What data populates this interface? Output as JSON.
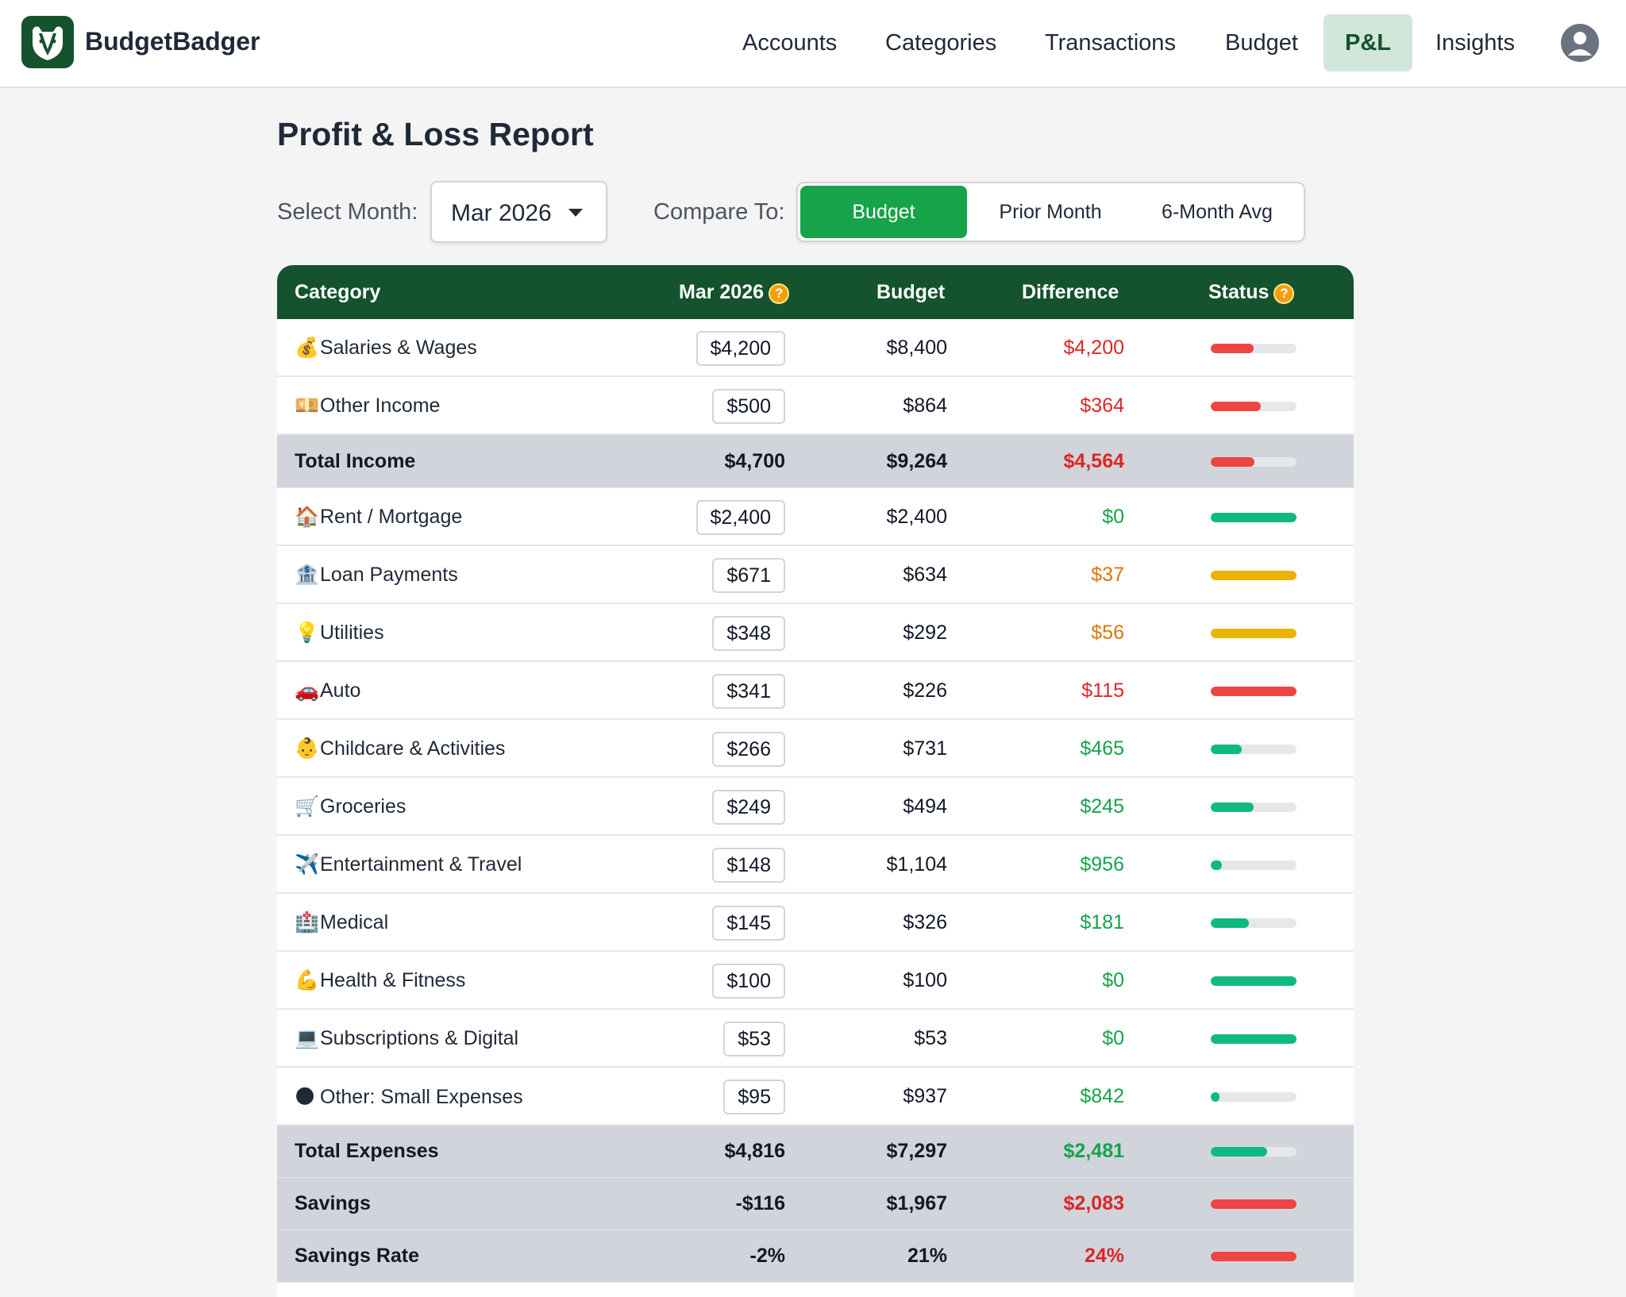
{
  "app": {
    "name": "BudgetBadger"
  },
  "nav": {
    "items": [
      {
        "label": "Accounts"
      },
      {
        "label": "Categories"
      },
      {
        "label": "Transactions"
      },
      {
        "label": "Budget"
      },
      {
        "label": "P&L",
        "active": true
      },
      {
        "label": "Insights"
      }
    ]
  },
  "page": {
    "title": "Profit & Loss Report"
  },
  "controls": {
    "month_label": "Select Month:",
    "month_value": "Mar 2026",
    "compare_label": "Compare To:",
    "compare_options": [
      "Budget",
      "Prior Month",
      "6-Month Avg"
    ],
    "compare_selected": "Budget"
  },
  "table": {
    "headers": {
      "category": "Category",
      "actual": "Mar 2026",
      "budget": "Budget",
      "difference": "Difference",
      "status": "Status"
    },
    "help_glyph": "?",
    "rows": [
      {
        "icon": "💰",
        "category": "Salaries & Wages",
        "actual": "$4,200",
        "budget": "$8,400",
        "difference": "$4,200",
        "status": "red",
        "progress": 0.5
      },
      {
        "icon": "💴",
        "category": "Other Income",
        "actual": "$500",
        "budget": "$864",
        "difference": "$364",
        "status": "red",
        "progress": 0.58
      },
      {
        "total": true,
        "category": "Total Income",
        "actual": "$4,700",
        "budget": "$9,264",
        "difference": "$4,564",
        "status": "red",
        "progress": 0.51
      },
      {
        "icon": "🏠",
        "category": "Rent / Mortgage",
        "actual": "$2,400",
        "budget": "$2,400",
        "difference": "$0",
        "status": "green",
        "progress": 1.0
      },
      {
        "icon": "🏦",
        "category": "Loan Payments",
        "actual": "$671",
        "budget": "$634",
        "difference": "$37",
        "status": "amber",
        "progress": 1.0
      },
      {
        "icon": "💡",
        "category": "Utilities",
        "actual": "$348",
        "budget": "$292",
        "difference": "$56",
        "status": "amber",
        "progress": 1.0
      },
      {
        "icon": "🚗",
        "category": "Auto",
        "actual": "$341",
        "budget": "$226",
        "difference": "$115",
        "status": "red",
        "progress": 1.0
      },
      {
        "icon": "👶",
        "category": "Childcare & Activities",
        "actual": "$266",
        "budget": "$731",
        "difference": "$465",
        "status": "green",
        "progress": 0.36
      },
      {
        "icon": "🛒",
        "category": "Groceries",
        "actual": "$249",
        "budget": "$494",
        "difference": "$245",
        "status": "green",
        "progress": 0.5
      },
      {
        "icon": "✈️",
        "category": "Entertainment & Travel",
        "actual": "$148",
        "budget": "$1,104",
        "difference": "$956",
        "status": "green",
        "progress": 0.13
      },
      {
        "icon": "🏥",
        "category": "Medical",
        "actual": "$145",
        "budget": "$326",
        "difference": "$181",
        "status": "green",
        "progress": 0.44
      },
      {
        "icon": "💪",
        "category": "Health & Fitness",
        "actual": "$100",
        "budget": "$100",
        "difference": "$0",
        "status": "green",
        "progress": 1.0
      },
      {
        "icon": "💻",
        "category": "Subscriptions & Digital",
        "actual": "$53",
        "budget": "$53",
        "difference": "$0",
        "status": "green",
        "progress": 1.0
      },
      {
        "icon": "🌑",
        "category": "Other: Small Expenses",
        "actual": "$95",
        "budget": "$937",
        "difference": "$842",
        "status": "green",
        "progress": 0.1
      },
      {
        "total": true,
        "category": "Total Expenses",
        "actual": "$4,816",
        "budget": "$7,297",
        "difference": "$2,481",
        "status": "green",
        "progress": 0.66
      },
      {
        "total": true,
        "category": "Savings",
        "actual": "-$116",
        "budget": "$1,967",
        "difference": "$2,083",
        "status": "red",
        "progress": 1.0
      },
      {
        "total": true,
        "category": "Savings Rate",
        "actual": "-2%",
        "budget": "21%",
        "difference": "24%",
        "status": "red",
        "progress": 1.0
      }
    ]
  },
  "colors": {
    "brand": "#14532d",
    "accent": "#16a34a",
    "red": "#dc2626",
    "green": "#16a34a",
    "amber": "#d97706",
    "bar_red": "#ef4444",
    "bar_green": "#10b981",
    "bar_amber": "#eab308"
  }
}
